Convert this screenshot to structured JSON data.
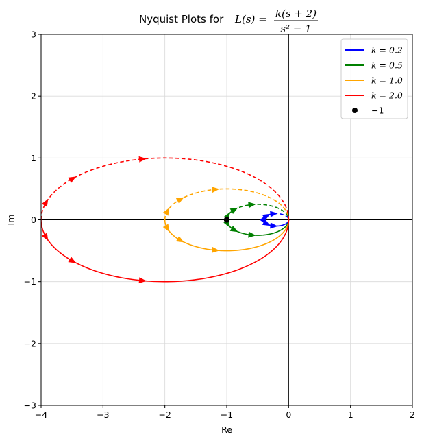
{
  "chart_data": {
    "type": "line",
    "title": {
      "prefix": "Nyquist Plots for ",
      "lhs": "L(s) = ",
      "numerator": "k(s + 2)",
      "denominator": "s² − 1"
    },
    "xlabel": "Re",
    "ylabel": "Im",
    "xlim": [
      -4,
      2
    ],
    "ylim": [
      -3,
      3
    ],
    "xticks": [
      -4,
      -3,
      -2,
      -1,
      0,
      1,
      2
    ],
    "yticks": [
      -3,
      -2,
      -1,
      0,
      1,
      2,
      3
    ],
    "xtick_labels": [
      "−4",
      "−3",
      "−2",
      "−1",
      "0",
      "1",
      "2"
    ],
    "ytick_labels": [
      "−3",
      "−2",
      "−1",
      "0",
      "1",
      "2",
      "3"
    ],
    "grid": true,
    "axis_lines": [
      {
        "axis": "x",
        "value": 0
      },
      {
        "axis": "y",
        "value": 0
      }
    ],
    "legend_position": "top-right",
    "curve": {
      "description": "circle in complex plane: center (-k, 0), radius k; solid = positive frequency (lower half), dashed = negative frequency (upper half)",
      "omega_range": [
        0,
        1000
      ]
    },
    "series": [
      {
        "name": "k = 0.2",
        "k": 0.2,
        "color": "#0000ff"
      },
      {
        "name": "k = 0.5",
        "k": 0.5,
        "color": "#008000"
      },
      {
        "name": "k = 1.0",
        "k": 1.0,
        "color": "#ffa500"
      },
      {
        "name": "k = 2.0",
        "k": 2.0,
        "color": "#ff0000"
      }
    ],
    "markers": [
      {
        "name": "−1",
        "x": -1,
        "y": 0,
        "color": "#000000"
      }
    ]
  }
}
